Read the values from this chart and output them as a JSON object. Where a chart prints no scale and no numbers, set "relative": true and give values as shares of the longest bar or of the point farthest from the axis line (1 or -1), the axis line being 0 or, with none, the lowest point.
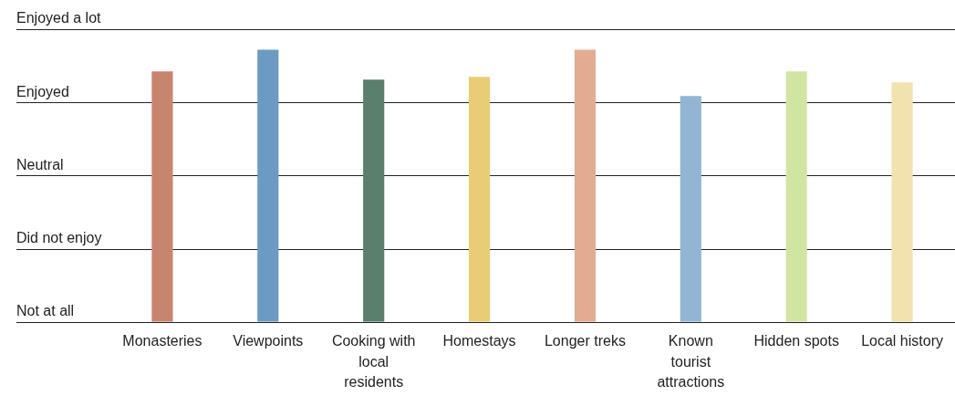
{
  "chart_data": {
    "type": "bar",
    "relative": true,
    "categories": [
      "Monasteries",
      "Viewpoints",
      "Cooking with local residents",
      "Homestays",
      "Longer treks",
      "Known tourist attractions",
      "Hidden spots",
      "Local history"
    ],
    "values": [
      0.92,
      1.0,
      0.89,
      0.9,
      1.0,
      0.83,
      0.92,
      0.88
    ],
    "colors": [
      "#c9846f",
      "#6b9bc3",
      "#5a7f6d",
      "#e8cd76",
      "#e2ab92",
      "#92b5d3",
      "#d1e5a2",
      "#f1e2b0"
    ],
    "annotations": [
      "Not at all",
      "Did not enjoy",
      "Neutral",
      "Enjoyed",
      "Enjoyed a lot"
    ],
    "grid": "y"
  }
}
